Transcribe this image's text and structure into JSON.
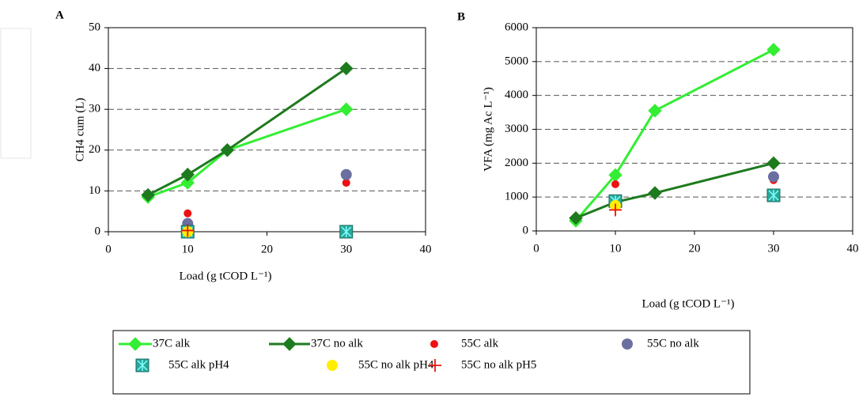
{
  "chart_data": [
    {
      "type": "scatter",
      "title": "A",
      "x_label": "Load (g tCOD L⁻¹)",
      "y_label": "CH4 cum (L)",
      "xlim": [
        0,
        40
      ],
      "xticks": [
        0,
        10,
        20,
        30,
        40
      ],
      "ylim": [
        0,
        50
      ],
      "yticks": [
        0,
        10,
        20,
        30,
        40,
        50
      ],
      "grid": true,
      "series": [
        {
          "name": "37C alk",
          "color": "#33ee33",
          "marker": "diamond",
          "line": true,
          "x": [
            5,
            10,
            15,
            30
          ],
          "values": [
            8.5,
            12,
            20,
            30
          ]
        },
        {
          "name": "37C no alk",
          "color": "#1e7a1e",
          "marker": "diamond",
          "line": true,
          "x": [
            5,
            10,
            15,
            30
          ],
          "values": [
            9,
            14,
            20,
            40
          ]
        },
        {
          "name": "55C alk",
          "color": "#ee1111",
          "marker": "small-circle",
          "x": [
            10,
            30
          ],
          "values": [
            4.5,
            12
          ]
        },
        {
          "name": "55C no alk",
          "color": "#6b6fa0",
          "marker": "circle",
          "x": [
            10,
            30
          ],
          "values": [
            2,
            14
          ]
        },
        {
          "name": "55C alk pH4",
          "color": "#2aa89a",
          "marker": "square-star",
          "x": [
            10,
            30
          ],
          "values": [
            0,
            0
          ]
        },
        {
          "name": "55C no alk pH4",
          "color": "#ffee00",
          "marker": "circle",
          "x": [
            10
          ],
          "values": [
            0
          ]
        },
        {
          "name": "55C no alk pH5",
          "color": "#ee1111",
          "marker": "plus",
          "x": [
            10
          ],
          "values": [
            0.3
          ]
        }
      ]
    },
    {
      "type": "scatter",
      "title": "B",
      "x_label": "Load (g tCOD L⁻¹)",
      "y_label": "VFA (mg Ac L⁻¹)",
      "xlim": [
        0,
        40
      ],
      "xticks": [
        0,
        10,
        20,
        30,
        40
      ],
      "ylim": [
        0,
        6000
      ],
      "yticks": [
        0,
        1000,
        2000,
        3000,
        4000,
        5000,
        6000
      ],
      "grid": true,
      "series": [
        {
          "name": "37C alk",
          "color": "#33ee33",
          "marker": "diamond",
          "line": true,
          "x": [
            5,
            10,
            15,
            30
          ],
          "values": [
            300,
            1650,
            3550,
            5350
          ]
        },
        {
          "name": "37C no alk",
          "color": "#1e7a1e",
          "marker": "diamond",
          "line": true,
          "x": [
            5,
            10,
            15,
            30
          ],
          "values": [
            380,
            850,
            1120,
            2000
          ]
        },
        {
          "name": "55C alk",
          "color": "#ee1111",
          "marker": "small-circle",
          "x": [
            10,
            30
          ],
          "values": [
            1380,
            1500
          ]
        },
        {
          "name": "55C no alk",
          "color": "#6b6fa0",
          "marker": "circle",
          "x": [
            10,
            30
          ],
          "values": [
            900,
            1600
          ]
        },
        {
          "name": "55C alk pH4",
          "color": "#2aa89a",
          "marker": "square-star",
          "x": [
            10,
            30
          ],
          "values": [
            880,
            1050
          ]
        },
        {
          "name": "55C no alk pH4",
          "color": "#ffee00",
          "marker": "circle",
          "x": [
            10
          ],
          "values": [
            750
          ]
        },
        {
          "name": "55C no alk pH5",
          "color": "#ee1111",
          "marker": "plus",
          "x": [
            10
          ],
          "values": [
            620
          ]
        }
      ]
    }
  ]
}
